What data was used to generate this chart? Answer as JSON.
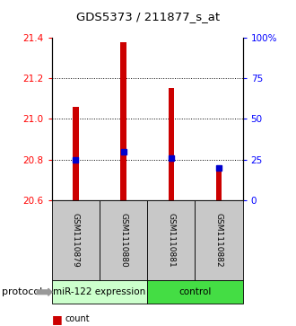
{
  "title": "GDS5373 / 211877_s_at",
  "samples": [
    "GSM1110879",
    "GSM1110880",
    "GSM1110881",
    "GSM1110882"
  ],
  "bar_bottom": 20.6,
  "bar_tops": [
    21.06,
    21.375,
    21.15,
    20.755
  ],
  "percentile_values": [
    25.0,
    30.0,
    26.0,
    20.0
  ],
  "ylim_left": [
    20.6,
    21.4
  ],
  "ylim_right": [
    0,
    100
  ],
  "yticks_left": [
    20.6,
    20.8,
    21.0,
    21.2,
    21.4
  ],
  "yticks_right": [
    0,
    25,
    50,
    75,
    100
  ],
  "bar_color": "#CC0000",
  "marker_color": "#0000CC",
  "bar_width": 0.12,
  "sample_cell_color": "#C8C8C8",
  "group_color_mir": "#CCFFCC",
  "group_color_ctrl": "#44DD44",
  "legend_count_color": "#CC0000",
  "legend_pct_color": "#0000CC",
  "grid_color": "black",
  "grid_lw": 0.7,
  "grid_style": ":",
  "title_fontsize": 9.5,
  "tick_fontsize": 7.5,
  "sample_fontsize": 6.5,
  "group_fontsize": 7.5,
  "legend_fontsize": 7
}
